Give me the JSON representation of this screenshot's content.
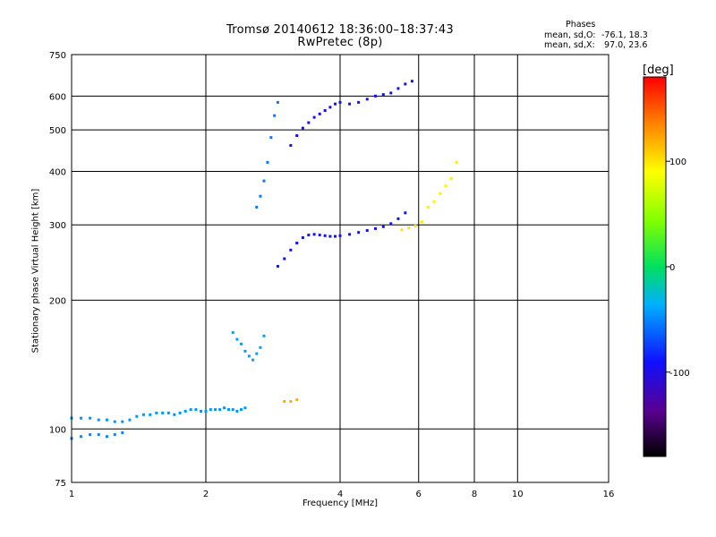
{
  "chart_data": {
    "type": "scatter",
    "title": "Tromsø 20140612 18:36:00–18:37:43",
    "subtitle": "RwPretec (8p)",
    "xlabel": "Frequency [MHz]",
    "ylabel": "Stationary phase Virtual Height [km]",
    "x_scale": "log",
    "y_scale": "log",
    "xlim": [
      1,
      16
    ],
    "ylim": [
      75,
      750
    ],
    "x_ticks": [
      1,
      2,
      4,
      6,
      8,
      10,
      16
    ],
    "x_tick_labels": [
      "1",
      "2",
      "4",
      "6",
      "8",
      "10",
      "16"
    ],
    "x_gridlines": [
      2,
      4,
      6,
      8,
      10
    ],
    "y_ticks": [
      75,
      100,
      200,
      300,
      400,
      500,
      600,
      750
    ],
    "y_tick_labels": [
      "75",
      "100",
      "200",
      "300",
      "400",
      "500",
      "600",
      "750"
    ],
    "y_gridlines": [
      100,
      200,
      300,
      400,
      500,
      600
    ],
    "grid": true,
    "stats_title": "Phases",
    "stats": [
      {
        "label": "mean, sd,O:",
        "value": "-76.1, 18.3"
      },
      {
        "label": "mean, sd,X:",
        "value": " 97.0, 23.6"
      }
    ],
    "colorbar": {
      "label": "[deg]",
      "range": [
        -180,
        180
      ],
      "ticks": [
        100,
        0,
        -100
      ],
      "tick_labels": [
        "100",
        "0",
        "-100"
      ]
    },
    "series": [
      {
        "x": [
          1.0,
          1.05,
          1.1,
          1.15,
          1.2,
          1.25,
          1.3,
          1.35,
          1.4,
          1.45,
          1.5,
          1.55,
          1.6,
          1.65,
          1.7,
          1.75,
          1.8,
          1.85,
          1.9,
          1.95,
          2.0,
          2.05,
          2.1,
          2.15,
          2.2,
          2.25,
          2.3,
          2.35,
          2.4,
          2.45
        ],
        "y": [
          106,
          106,
          106,
          105,
          105,
          104,
          104,
          105,
          107,
          108,
          108,
          109,
          109,
          109,
          108,
          109,
          110,
          111,
          111,
          110,
          110,
          111,
          111,
          111,
          112,
          111,
          111,
          110,
          111,
          112
        ],
        "phase": -45
      },
      {
        "x": [
          1.0,
          1.05,
          1.1,
          1.15,
          1.2,
          1.25,
          1.3
        ],
        "y": [
          95,
          96,
          97,
          97,
          96,
          97,
          98
        ],
        "phase": -50
      },
      {
        "x": [
          2.3,
          2.35,
          2.4,
          2.45,
          2.5,
          2.55,
          2.6,
          2.65,
          2.7
        ],
        "y": [
          168,
          162,
          158,
          152,
          148,
          145,
          150,
          155,
          165
        ],
        "phase": -42
      },
      {
        "x": [
          2.6,
          2.65,
          2.7,
          2.75,
          2.8,
          2.85,
          2.9
        ],
        "y": [
          330,
          350,
          380,
          420,
          480,
          540,
          580
        ],
        "phase": -55
      },
      {
        "x": [
          2.9,
          3.0,
          3.1,
          3.2,
          3.3,
          3.4,
          3.5,
          3.6,
          3.7,
          3.8,
          3.9,
          4.0,
          4.2,
          4.4,
          4.6,
          4.8,
          5.0,
          5.2,
          5.4,
          5.6
        ],
        "y": [
          240,
          250,
          262,
          272,
          280,
          284,
          285,
          284,
          283,
          282,
          282,
          283,
          285,
          288,
          291,
          294,
          297,
          302,
          310,
          320
        ],
        "phase": -90
      },
      {
        "x": [
          3.1,
          3.2,
          3.3,
          3.4,
          3.5,
          3.6,
          3.7,
          3.8,
          3.9,
          4.0,
          4.2,
          4.4,
          4.6,
          4.8,
          5.0,
          5.2,
          5.4,
          5.6,
          5.8
        ],
        "y": [
          460,
          485,
          505,
          520,
          535,
          545,
          555,
          565,
          575,
          580,
          575,
          580,
          590,
          600,
          605,
          610,
          625,
          640,
          650
        ],
        "phase": -95
      },
      {
        "x": [
          6.3,
          6.5,
          6.7,
          6.9,
          7.1,
          7.3
        ],
        "y": [
          330,
          340,
          355,
          370,
          385,
          420
        ],
        "phase": 95
      },
      {
        "x": [
          5.5,
          5.7,
          5.9,
          6.1
        ],
        "y": [
          292,
          295,
          298,
          305
        ],
        "phase": 100
      },
      {
        "x": [
          3.0,
          3.1,
          3.2
        ],
        "y": [
          116,
          116,
          117
        ],
        "phase": 120
      }
    ]
  }
}
